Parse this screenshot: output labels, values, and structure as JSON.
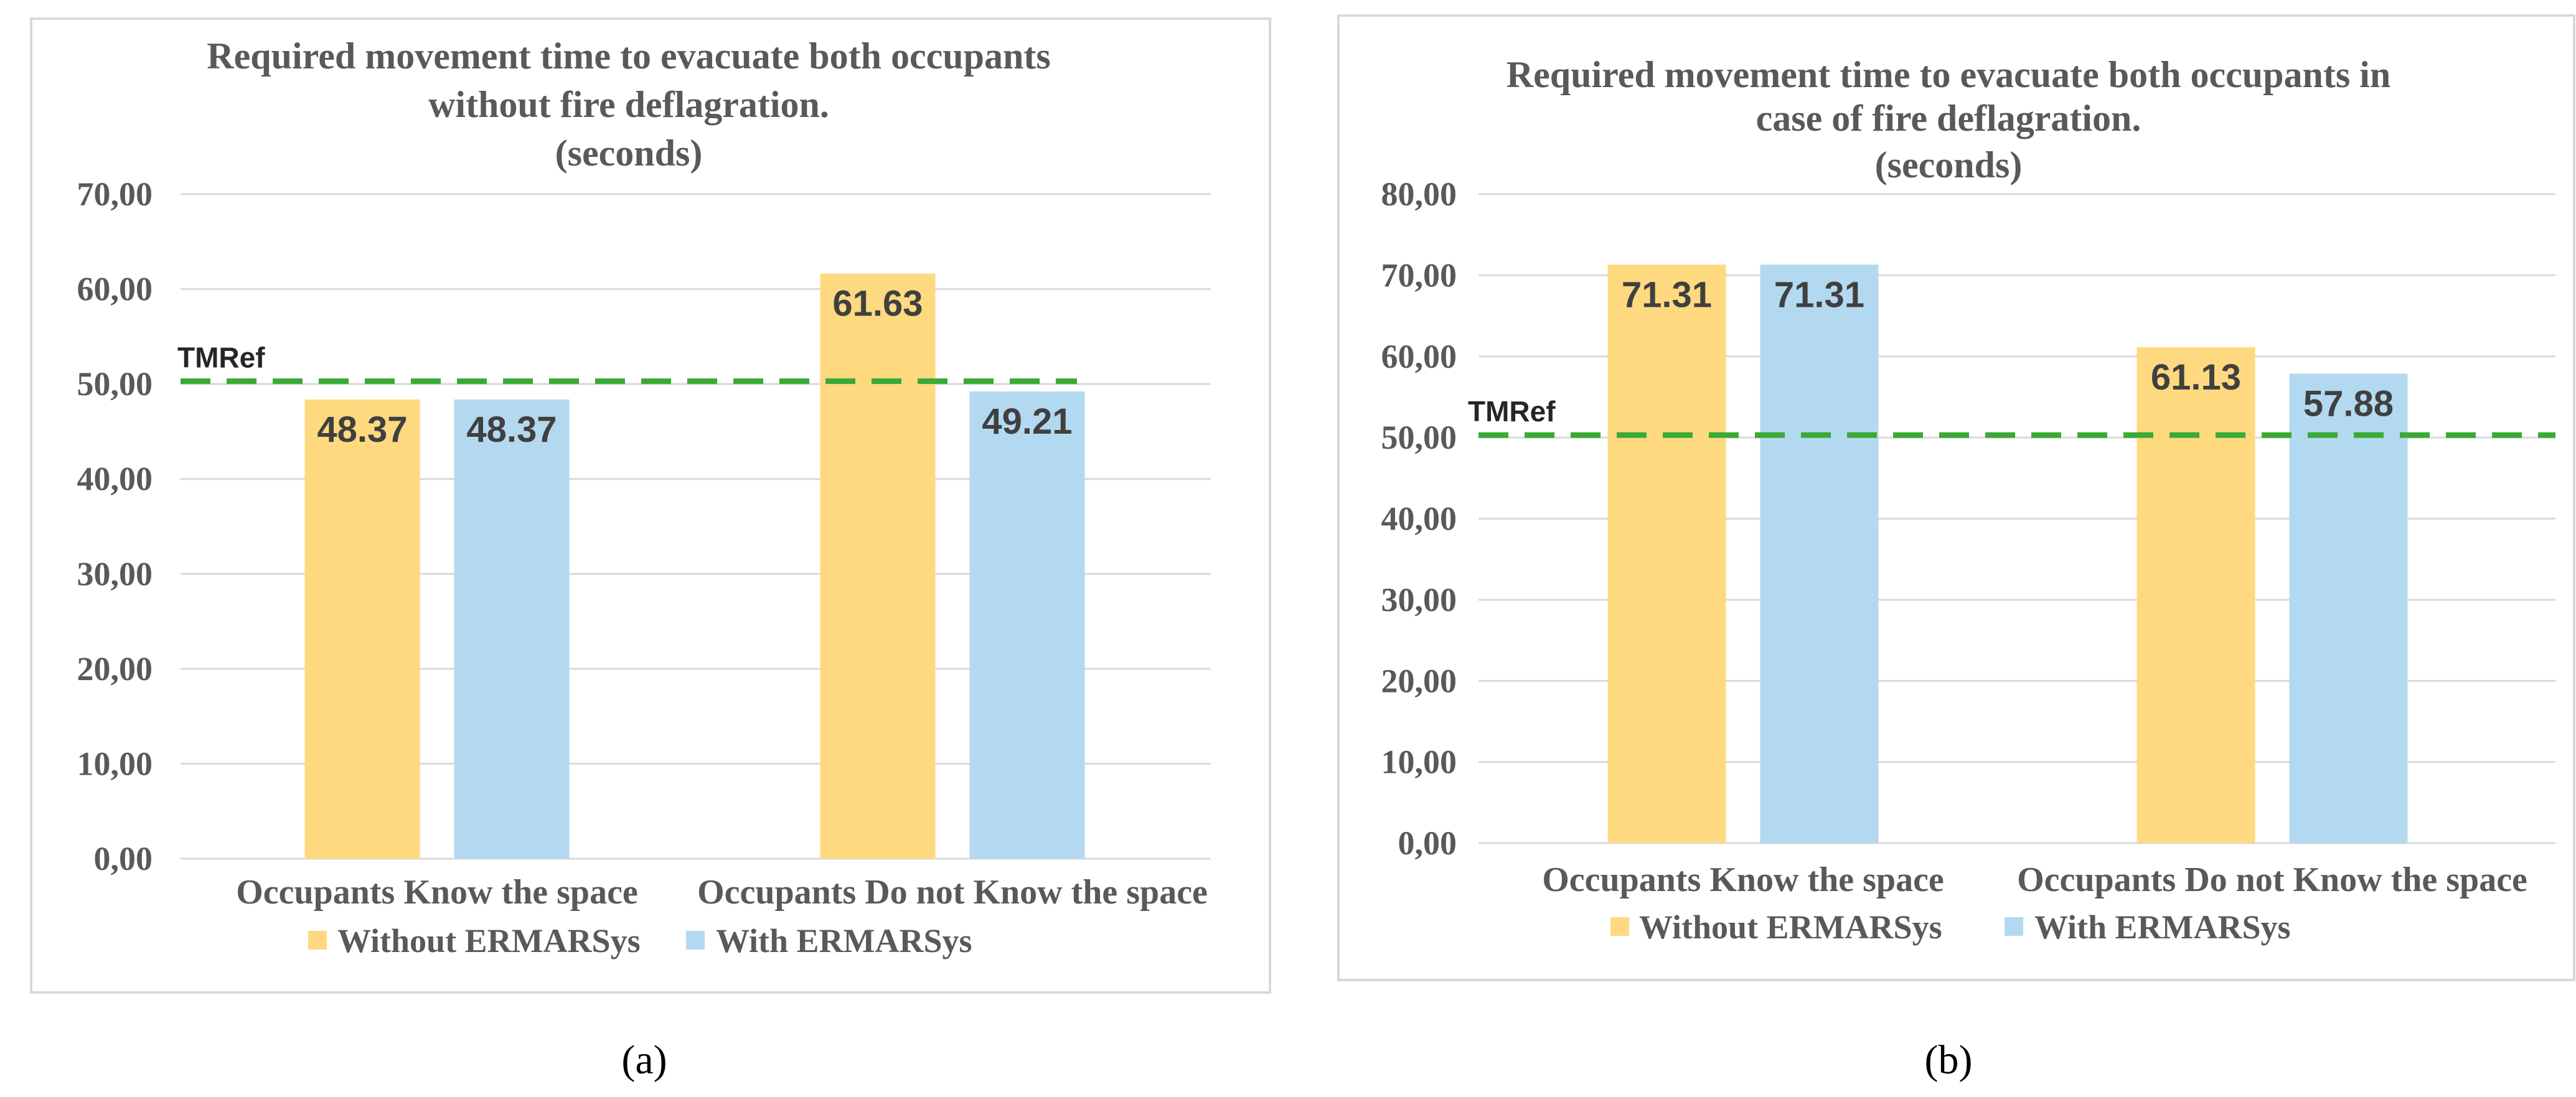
{
  "colors": {
    "without": "#FFD97F",
    "with": "#B3D9F0",
    "tmref": "#3AAA35",
    "grid": "#D9D9D9",
    "text": "#595959",
    "label": "#404040",
    "frame": "#D9D9D9"
  },
  "chart_data": [
    {
      "type": "bar",
      "panel_label": "(a)",
      "title_lines": [
        "Required movement time to evacuate both occupants",
        "without fire deflagration.",
        "(seconds)"
      ],
      "categories": [
        "Occupants Know the space",
        "Occupants Do not Know the space"
      ],
      "series": [
        {
          "name": "Without ERMARSys",
          "values": [
            48.37,
            61.63
          ],
          "labels": [
            "48.37",
            "61.63"
          ]
        },
        {
          "name": "With ERMARSys",
          "values": [
            48.37,
            49.21
          ],
          "labels": [
            "48.37",
            "49.21"
          ]
        }
      ],
      "ylim": [
        0,
        70
      ],
      "yticks": [
        0,
        10,
        20,
        30,
        40,
        50,
        60,
        70
      ],
      "ytick_labels": [
        "0,00",
        "10,00",
        "20,00",
        "30,00",
        "40,00",
        "50,00",
        "60,00",
        "70,00"
      ],
      "reference_line": {
        "label": "TMRef",
        "value": 50.3
      },
      "legend": "bottom",
      "grid": true
    },
    {
      "type": "bar",
      "panel_label": "(b)",
      "title_lines": [
        "Required movement time to evacuate both occupants in",
        "case of fire deflagration.",
        "(seconds)"
      ],
      "categories": [
        "Occupants Know the space",
        "Occupants Do not Know the space"
      ],
      "series": [
        {
          "name": "Without ERMARSys",
          "values": [
            71.31,
            61.13
          ],
          "labels": [
            "71.31",
            "61.13"
          ]
        },
        {
          "name": "With ERMARSys",
          "values": [
            71.31,
            57.88
          ],
          "labels": [
            "71.31",
            "57.88"
          ]
        }
      ],
      "ylim": [
        0,
        80
      ],
      "yticks": [
        0,
        10,
        20,
        30,
        40,
        50,
        60,
        70,
        80
      ],
      "ytick_labels": [
        "0,00",
        "10,00",
        "20,00",
        "30,00",
        "40,00",
        "50,00",
        "60,00",
        "70,00",
        "80,00"
      ],
      "reference_line": {
        "label": "TMRef",
        "value": 50.3
      },
      "legend": "bottom",
      "grid": true
    }
  ]
}
